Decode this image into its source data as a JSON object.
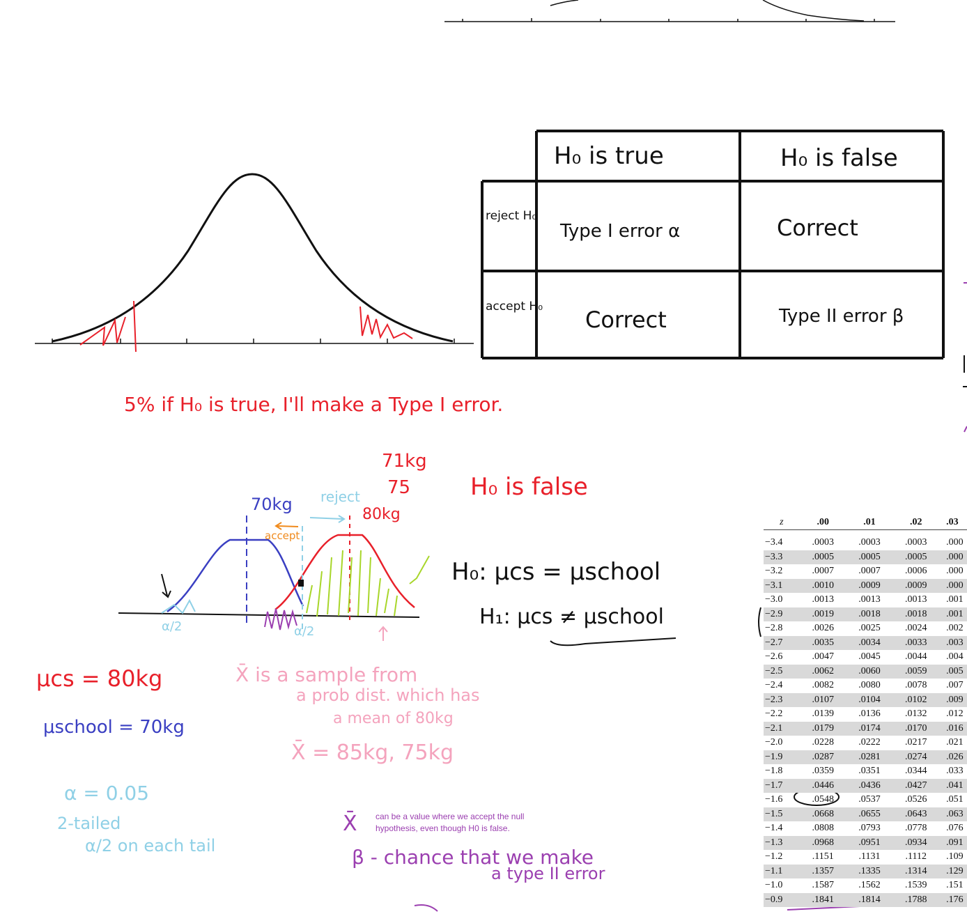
{
  "error_table": {
    "col_headers": [
      "H₀ is true",
      "H₀ is false"
    ],
    "row_headers": [
      "reject H₀",
      "accept H₀"
    ],
    "cells": [
      [
        "Type I error α",
        "Correct"
      ],
      [
        "Correct",
        "Type II error β"
      ]
    ]
  },
  "notes": {
    "type1_statement": "5% if H₀ is true, I'll make a Type I error.",
    "weight_71": "71kg",
    "weight_75": "75",
    "h0_false": "H₀ is false",
    "label_70kg": "70kg",
    "label_reject": "reject",
    "label_80kg": "80kg",
    "label_accept": "accept",
    "h0": "H₀: μcs = μschool",
    "h1": "H₁: μcs ≠ μschool",
    "alpha_half_left": "α/2",
    "alpha_half_right": "α/2",
    "mu_cs": "μcs = 80kg",
    "mu_school": "μschool = 70kg",
    "xbar_sample_1": "X̄  is a sample from",
    "xbar_sample_2": "a prob dist. which has",
    "xbar_sample_3": "a mean of 80kg",
    "xbar_values": "X̄ = 85kg, 75kg",
    "alpha_value": "α = 0.05",
    "two_tailed": "2-tailed",
    "alpha_each_tail": "α/2 on each tail",
    "xbar_symbol": "X̄",
    "typed_note_1": "can be a value where we accept the null",
    "typed_note_2": "hypothesis, even though H0 is false.",
    "beta_def_1": "β - chance that we make",
    "beta_def_2": "a type II error"
  },
  "z_table": {
    "header": [
      "z",
      ".00",
      ".01",
      ".02",
      ".03"
    ],
    "rows": [
      [
        "−3.4",
        ".0003",
        ".0003",
        ".0003",
        ".000"
      ],
      [
        "−3.3",
        ".0005",
        ".0005",
        ".0005",
        ".000"
      ],
      [
        "−3.2",
        ".0007",
        ".0007",
        ".0006",
        ".000"
      ],
      [
        "−3.1",
        ".0010",
        ".0009",
        ".0009",
        ".000"
      ],
      [
        "−3.0",
        ".0013",
        ".0013",
        ".0013",
        ".001"
      ],
      [
        "−2.9",
        ".0019",
        ".0018",
        ".0018",
        ".001"
      ],
      [
        "−2.8",
        ".0026",
        ".0025",
        ".0024",
        ".002"
      ],
      [
        "−2.7",
        ".0035",
        ".0034",
        ".0033",
        ".003"
      ],
      [
        "−2.6",
        ".0047",
        ".0045",
        ".0044",
        ".004"
      ],
      [
        "−2.5",
        ".0062",
        ".0060",
        ".0059",
        ".005"
      ],
      [
        "−2.4",
        ".0082",
        ".0080",
        ".0078",
        ".007"
      ],
      [
        "−2.3",
        ".0107",
        ".0104",
        ".0102",
        ".009"
      ],
      [
        "−2.2",
        ".0139",
        ".0136",
        ".0132",
        ".012"
      ],
      [
        "−2.1",
        ".0179",
        ".0174",
        ".0170",
        ".016"
      ],
      [
        "−2.0",
        ".0228",
        ".0222",
        ".0217",
        ".021"
      ],
      [
        "−1.9",
        ".0287",
        ".0281",
        ".0274",
        ".026"
      ],
      [
        "−1.8",
        ".0359",
        ".0351",
        ".0344",
        ".033"
      ],
      [
        "−1.7",
        ".0446",
        ".0436",
        ".0427",
        ".041"
      ],
      [
        "−1.6",
        ".0548",
        ".0537",
        ".0526",
        ".051"
      ],
      [
        "−1.5",
        ".0668",
        ".0655",
        ".0643",
        ".063"
      ],
      [
        "−1.4",
        ".0808",
        ".0793",
        ".0778",
        ".076"
      ],
      [
        "−1.3",
        ".0968",
        ".0951",
        ".0934",
        ".091"
      ],
      [
        "−1.2",
        ".1151",
        ".1131",
        ".1112",
        ".109"
      ],
      [
        "−1.1",
        ".1357",
        ".1335",
        ".1314",
        ".129"
      ],
      [
        "−1.0",
        ".1587",
        ".1562",
        ".1539",
        ".151"
      ],
      [
        "−0.9",
        ".1841",
        ".1814",
        ".1788",
        ".176"
      ]
    ]
  },
  "colors": {
    "red": "#e8202a",
    "blue": "#3a3fc2",
    "pink": "#f4a3bd",
    "light_blue": "#8fd0e6",
    "purple": "#9b3fb0",
    "green": "#a8d62a",
    "orange": "#f08a1c",
    "black": "#111111"
  }
}
